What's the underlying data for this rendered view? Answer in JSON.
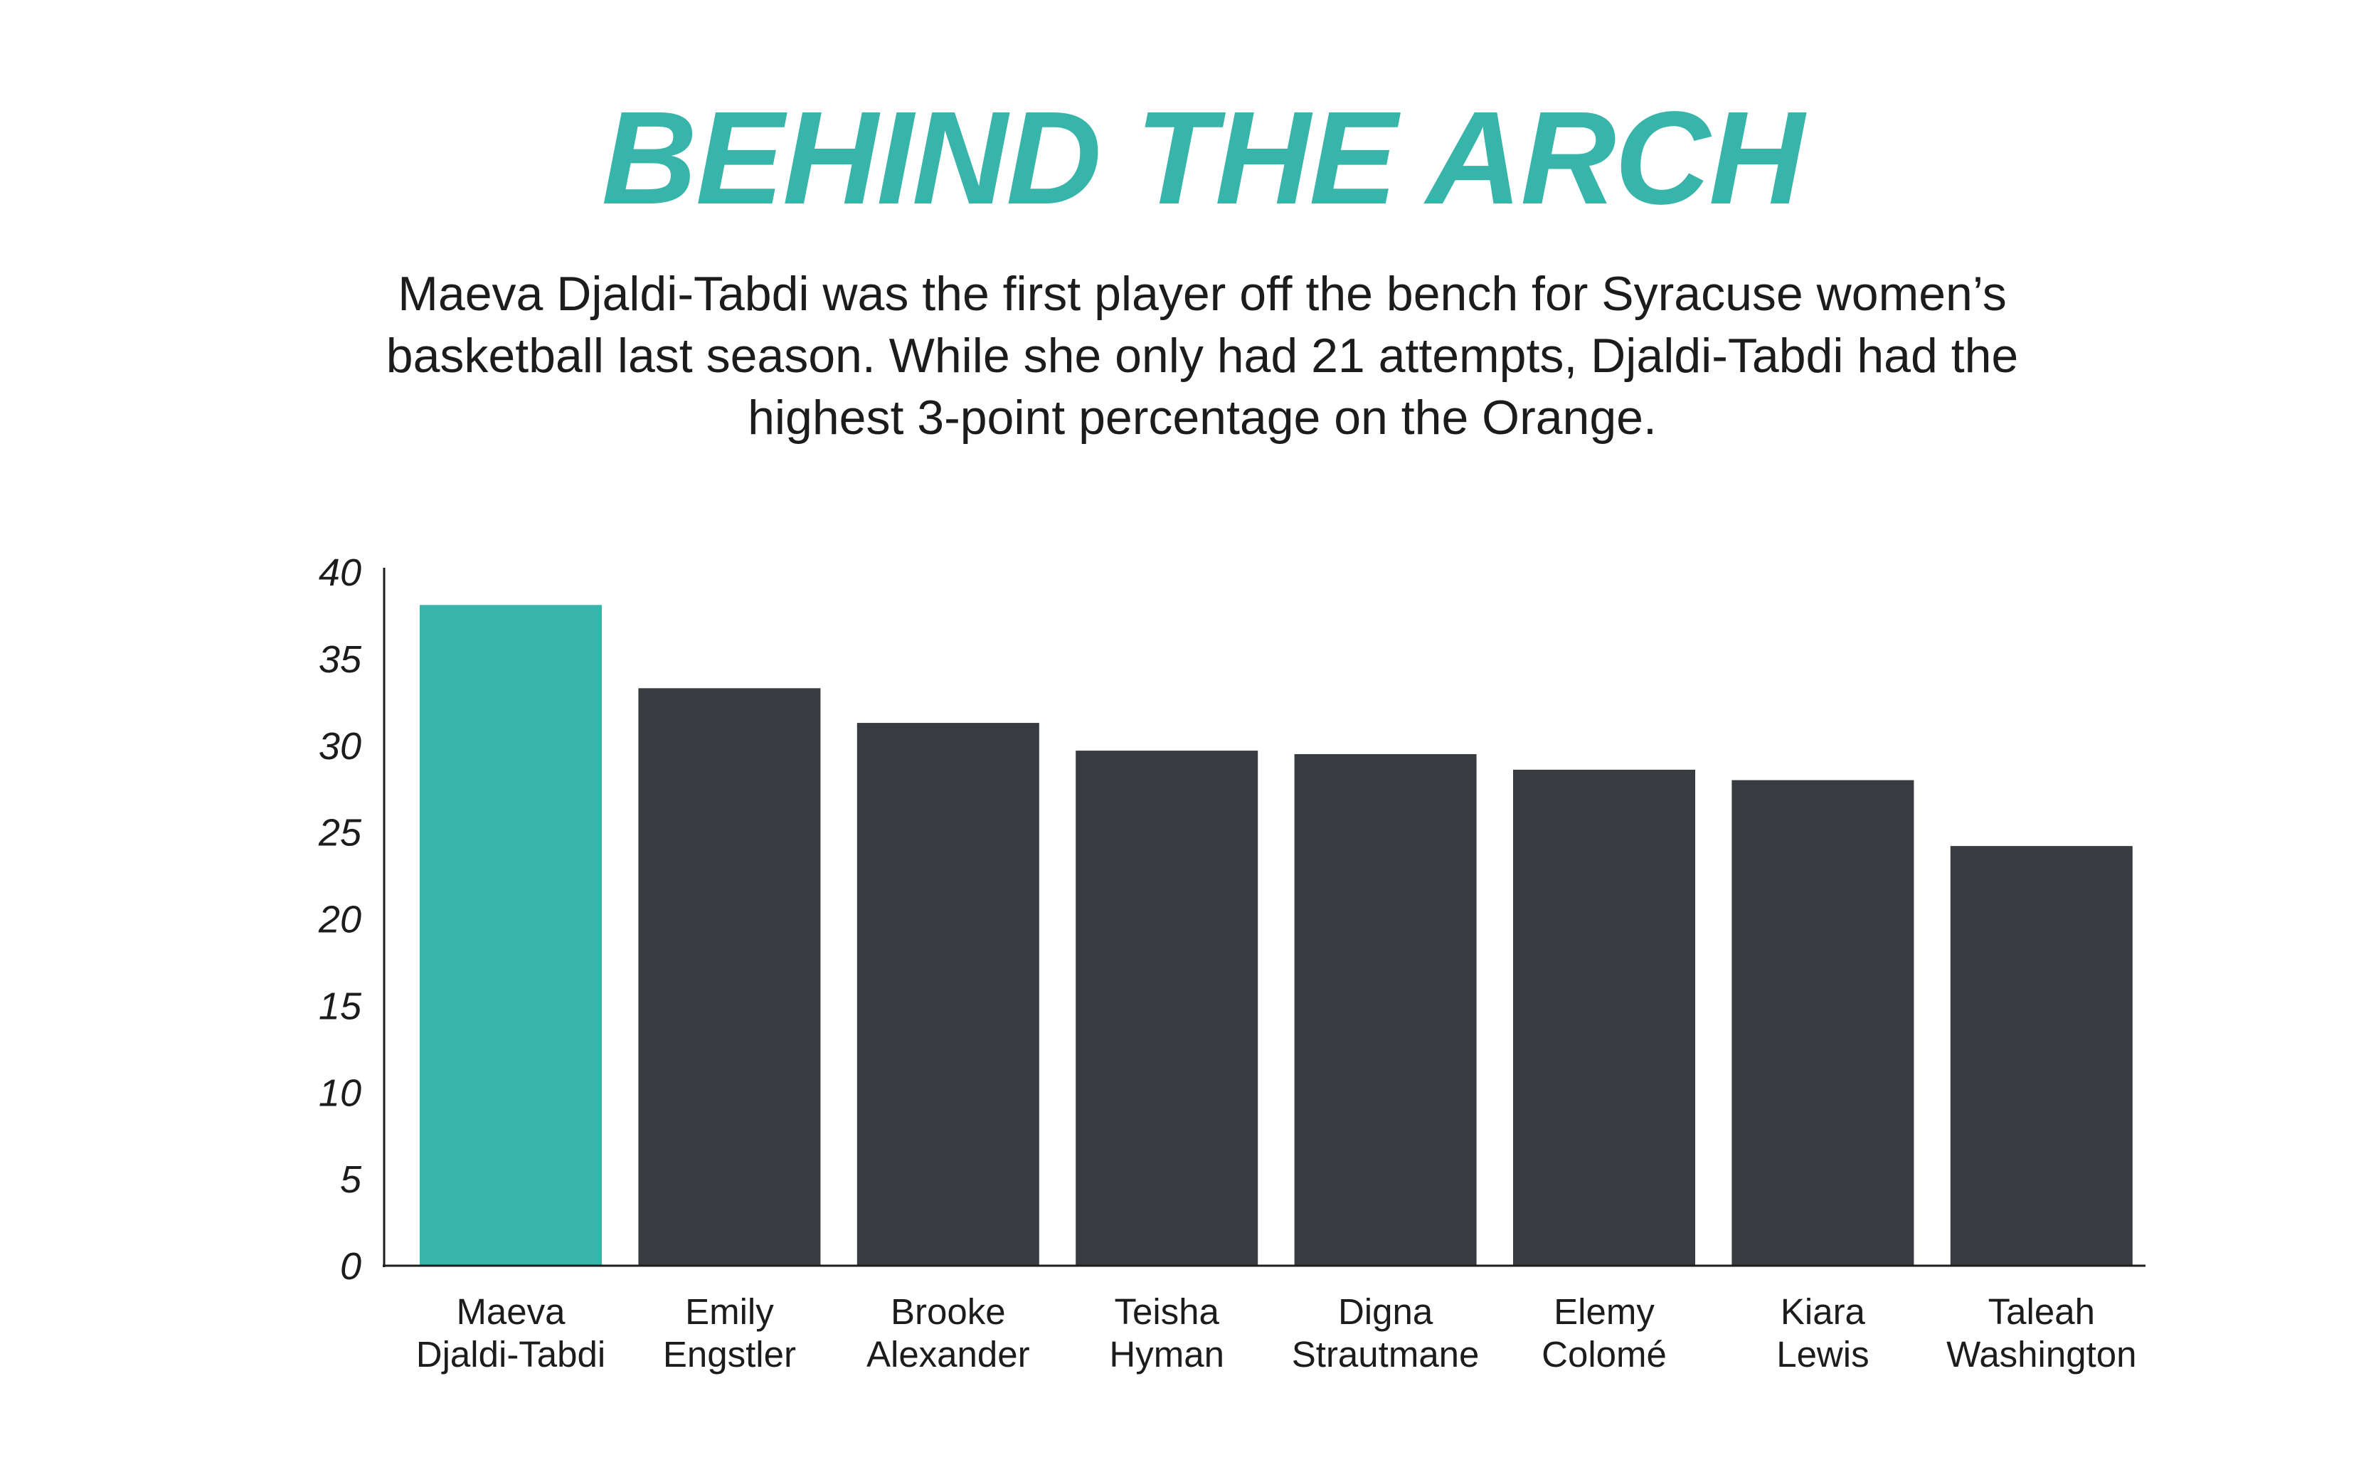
{
  "title": "BEHIND THE ARCH",
  "subtitle": "Maeva Djaldi-Tabdi was the first player off the bench for Syracuse women’s basketball last season. While she only had 21 attempts, Djaldi-Tabdi had the highest 3-point percentage on the Orange.",
  "colors": {
    "accent": "#38b5ab",
    "bar": "#383b3f",
    "axis": "#1e1e1e",
    "text": "#1c1c1c"
  },
  "chart_data": {
    "type": "bar",
    "categories": [
      [
        "Maeva",
        "Djaldi-Tabdi"
      ],
      [
        "Emily",
        "Engstler"
      ],
      [
        "Brooke",
        "Alexander"
      ],
      [
        "Teisha",
        "Hyman"
      ],
      [
        "Digna",
        "Strautmane"
      ],
      [
        "Elemy",
        "Colomé"
      ],
      [
        "Kiara",
        "Lewis"
      ],
      [
        "Taleah",
        "Washington"
      ]
    ],
    "values": [
      38.1,
      33.3,
      31.3,
      29.7,
      29.5,
      28.6,
      28.0,
      24.2
    ],
    "highlight_index": 0,
    "yticks": [
      "0",
      "5",
      "10",
      "15",
      "20",
      "25",
      "30",
      "35",
      "40"
    ],
    "ylim": [
      0,
      40
    ],
    "grid": false,
    "legend": "none"
  }
}
